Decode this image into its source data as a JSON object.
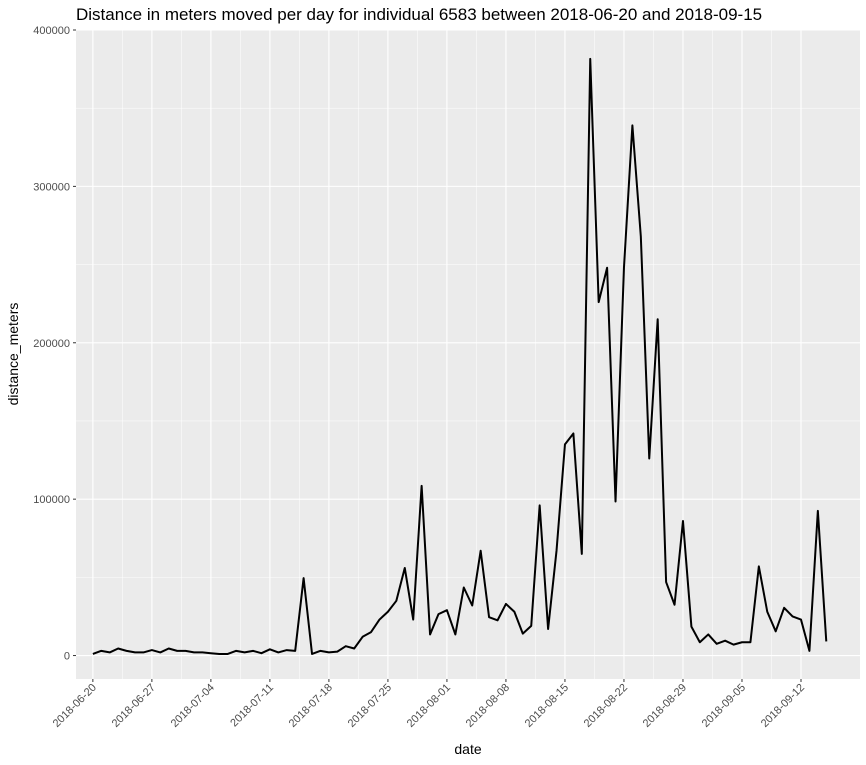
{
  "chart_data": {
    "type": "line",
    "title": "Distance in meters moved per day for individual 6583 between 2018-06-20 and 2018-09-15",
    "xlabel": "date",
    "ylabel": "distance_meters",
    "x_range": [
      "2018-06-18",
      "2018-09-19"
    ],
    "ylim": [
      -15000,
      400000
    ],
    "grid": true,
    "legend": "none",
    "colors": {
      "panel": "#ebebeb",
      "grid_major": "#ffffff",
      "line": "#000000",
      "tick": "#4d4d4d"
    },
    "x_ticks": [
      "2018-06-20",
      "2018-06-27",
      "2018-07-04",
      "2018-07-11",
      "2018-07-18",
      "2018-07-25",
      "2018-08-01",
      "2018-08-08",
      "2018-08-15",
      "2018-08-22",
      "2018-08-29",
      "2018-09-05",
      "2018-09-12"
    ],
    "y_ticks": [
      0,
      100000,
      200000,
      300000,
      400000
    ],
    "y_tick_labels": [
      "0",
      "100000",
      "200000",
      "300000",
      "400000"
    ],
    "series": [
      {
        "x": [
          "2018-06-20",
          "2018-06-21",
          "2018-06-22",
          "2018-06-23",
          "2018-06-24",
          "2018-06-25",
          "2018-06-26",
          "2018-06-27",
          "2018-06-28",
          "2018-06-29",
          "2018-06-30",
          "2018-07-01",
          "2018-07-02",
          "2018-07-03",
          "2018-07-04",
          "2018-07-05",
          "2018-07-06",
          "2018-07-07",
          "2018-07-08",
          "2018-07-09",
          "2018-07-10",
          "2018-07-11",
          "2018-07-12",
          "2018-07-13",
          "2018-07-14",
          "2018-07-15",
          "2018-07-16",
          "2018-07-17",
          "2018-07-18",
          "2018-07-19",
          "2018-07-20",
          "2018-07-21",
          "2018-07-22",
          "2018-07-23",
          "2018-07-24",
          "2018-07-25",
          "2018-07-26",
          "2018-07-27",
          "2018-07-28",
          "2018-07-29",
          "2018-07-30",
          "2018-07-31",
          "2018-08-01",
          "2018-08-02",
          "2018-08-03",
          "2018-08-04",
          "2018-08-05",
          "2018-08-06",
          "2018-08-07",
          "2018-08-08",
          "2018-08-09",
          "2018-08-10",
          "2018-08-11",
          "2018-08-12",
          "2018-08-13",
          "2018-08-14",
          "2018-08-15",
          "2018-08-16",
          "2018-08-17",
          "2018-08-18",
          "2018-08-19",
          "2018-08-20",
          "2018-08-21",
          "2018-08-22",
          "2018-08-23",
          "2018-08-24",
          "2018-08-25",
          "2018-08-26",
          "2018-08-27",
          "2018-08-28",
          "2018-08-29",
          "2018-08-30",
          "2018-08-31",
          "2018-09-01",
          "2018-09-02",
          "2018-09-03",
          "2018-09-04",
          "2018-09-05",
          "2018-09-06",
          "2018-09-07",
          "2018-09-08",
          "2018-09-09",
          "2018-09-10",
          "2018-09-11",
          "2018-09-12",
          "2018-09-13",
          "2018-09-14",
          "2018-09-15"
        ],
        "y": [
          1000,
          3000,
          2000,
          4500,
          3000,
          2000,
          2000,
          3500,
          2000,
          4500,
          3000,
          3000,
          2000,
          2000,
          1500,
          1000,
          1000,
          3000,
          2000,
          3000,
          1500,
          4000,
          2000,
          3500,
          3000,
          49500,
          1000,
          3000,
          2000,
          2500,
          6000,
          4500,
          12000,
          15000,
          23000,
          28000,
          35000,
          56000,
          23000,
          108500,
          13500,
          26500,
          29000,
          13500,
          43500,
          32000,
          67000,
          24500,
          22500,
          33000,
          28000,
          14000,
          19000,
          96000,
          17000,
          67000,
          135000,
          142000,
          65000,
          381500,
          226000,
          248000,
          98500,
          248000,
          339000,
          268000,
          126000,
          215000,
          47000,
          32500,
          86000,
          18500,
          8500,
          13500,
          7500,
          9500,
          7000,
          8500,
          8500,
          57000,
          28000,
          15500,
          30500,
          25000,
          23000,
          3000,
          92500,
          9000
        ]
      }
    ]
  }
}
